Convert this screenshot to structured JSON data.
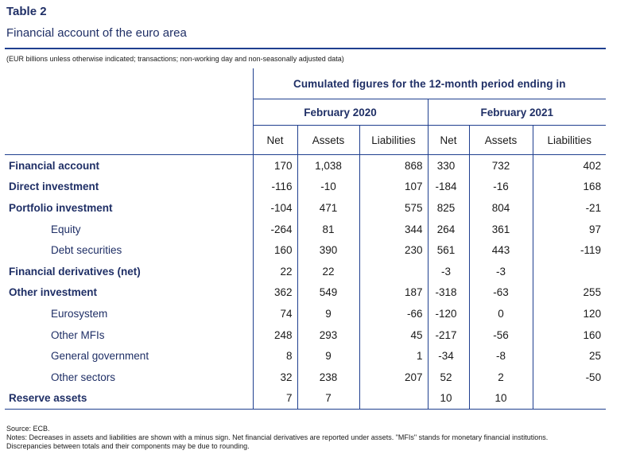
{
  "title": "Table 2",
  "subtitle": "Financial account of the euro area",
  "unit_note": "(EUR billions unless otherwise indicated; transactions; non-working day and non-seasonally adjusted data)",
  "header": {
    "cumulated": "Cumulated figures for the 12-month period ending in",
    "periods": [
      "February 2020",
      "February 2021"
    ],
    "columns": [
      "Net",
      "Assets",
      "Liabilities",
      "Net",
      "Assets",
      "Liabilities"
    ]
  },
  "rows": [
    {
      "label": "Financial account",
      "level": "main",
      "values": [
        "170",
        "1,038",
        "868",
        "330",
        "732",
        "402"
      ]
    },
    {
      "label": "Direct investment",
      "level": "main",
      "values": [
        "-116",
        "-10",
        "107",
        "-184",
        "-16",
        "168"
      ]
    },
    {
      "label": "Portfolio investment",
      "level": "main",
      "values": [
        "-104",
        "471",
        "575",
        "825",
        "804",
        "-21"
      ]
    },
    {
      "label": "Equity",
      "level": "sub",
      "values": [
        "-264",
        "81",
        "344",
        "264",
        "361",
        "97"
      ]
    },
    {
      "label": "Debt securities",
      "level": "sub",
      "values": [
        "160",
        "390",
        "230",
        "561",
        "443",
        "-119"
      ]
    },
    {
      "label": "Financial derivatives (net)",
      "level": "main",
      "values": [
        "22",
        "22",
        "",
        "-3",
        "-3",
        ""
      ]
    },
    {
      "label": "Other investment",
      "level": "main",
      "values": [
        "362",
        "549",
        "187",
        "-318",
        "-63",
        "255"
      ]
    },
    {
      "label": "Eurosystem",
      "level": "sub",
      "values": [
        "74",
        "9",
        "-66",
        "-120",
        "0",
        "120"
      ]
    },
    {
      "label": "Other MFIs",
      "level": "sub",
      "values": [
        "248",
        "293",
        "45",
        "-217",
        "-56",
        "160"
      ]
    },
    {
      "label": "General government",
      "level": "sub",
      "values": [
        "8",
        "9",
        "1",
        "-34",
        "-8",
        "25"
      ]
    },
    {
      "label": "Other sectors",
      "level": "sub",
      "values": [
        "32",
        "238",
        "207",
        "52",
        "2",
        "-50"
      ]
    },
    {
      "label": "Reserve assets",
      "level": "main",
      "values": [
        "7",
        "7",
        "",
        "10",
        "10",
        ""
      ]
    }
  ],
  "source": "Source: ECB.",
  "notes": [
    "Notes: Decreases in assets and liabilities are shown with a minus sign. Net financial derivatives are reported under assets. \"MFIs\" stands for monetary financial institutions.",
    "Discrepancies between totals and their components may be due to rounding."
  ]
}
